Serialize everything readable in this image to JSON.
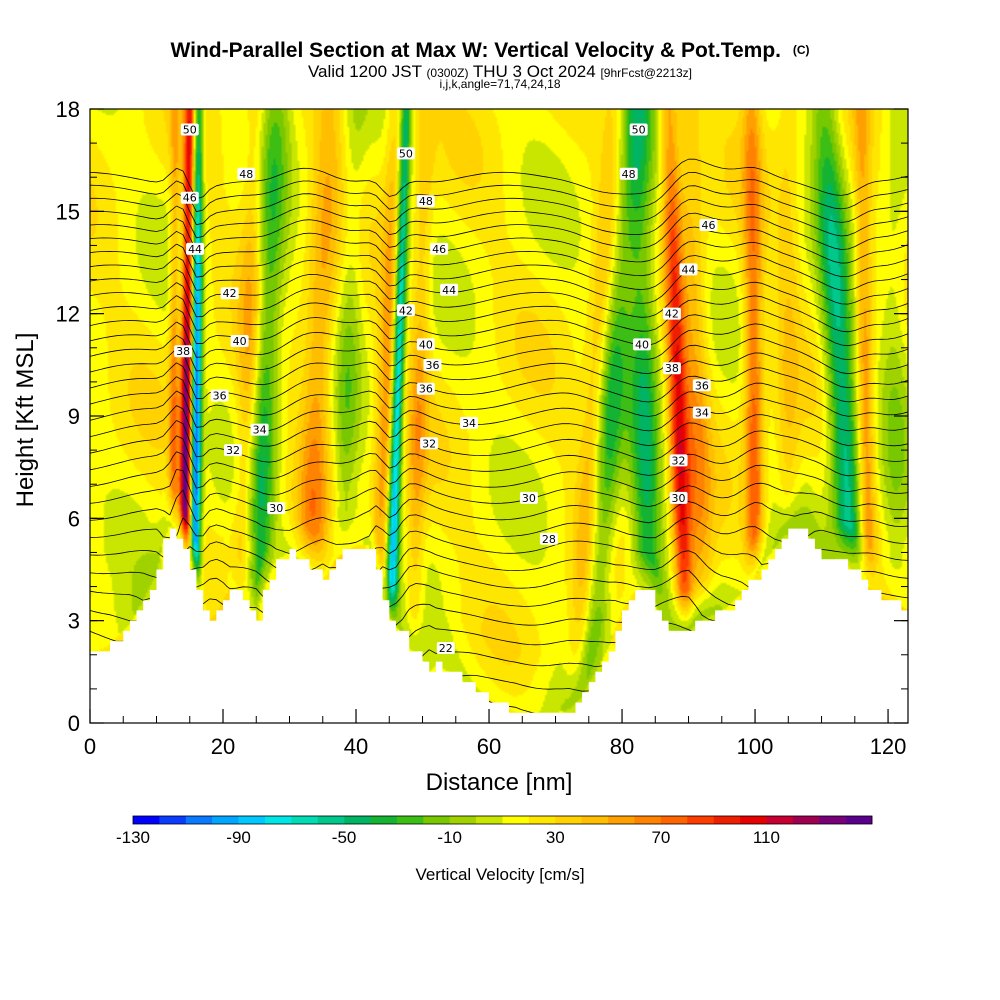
{
  "chart_data": {
    "type": "heatmap",
    "title": "Wind-Parallel Section at Max W: Vertical Velocity & Pot.Temp.",
    "title_mark": "(C)",
    "subtitle_valid": "Valid 1200 JST",
    "subtitle_utc": "(0300Z)",
    "subtitle_date": "THU 3 Oct 2024",
    "subtitle_fcst": "[9hrFcst@2213z]",
    "subtitle_indices": "i,j,k,angle=71,74,24,18",
    "xlabel": "Distance [nm]",
    "ylabel": "Height [Kft MSL]",
    "xlim": [
      0,
      123
    ],
    "ylim": [
      0,
      18
    ],
    "x_ticks": [
      0,
      20,
      40,
      60,
      80,
      100,
      120
    ],
    "y_ticks": [
      0,
      3,
      6,
      9,
      12,
      15,
      18
    ],
    "colorbar": {
      "label": "Vertical Velocity [cm/s]",
      "min": -130,
      "max": 150,
      "step": 10,
      "tick_values": [
        -130,
        -90,
        -50,
        -10,
        30,
        70,
        110
      ],
      "colors": [
        "#0000ff",
        "#0a3cff",
        "#0a78ff",
        "#00a5ff",
        "#00c8ff",
        "#00e6e6",
        "#00dcb4",
        "#00c88c",
        "#00b464",
        "#14b432",
        "#3cbe14",
        "#78c800",
        "#a0d200",
        "#c8e600",
        "#ffff00",
        "#ffe600",
        "#ffd200",
        "#ffbe00",
        "#ffa000",
        "#ff8200",
        "#ff6400",
        "#ff3c00",
        "#f01e00",
        "#e60000",
        "#c80032",
        "#a00050",
        "#780078",
        "#5a008c"
      ]
    },
    "terrain_profile": {
      "x": [
        0,
        3,
        6,
        8,
        10,
        11,
        12,
        13,
        15,
        16,
        17,
        18,
        19,
        20,
        21,
        22,
        24,
        25,
        26,
        28,
        30,
        33,
        35,
        37,
        39,
        40,
        42,
        43,
        44,
        45,
        46,
        47,
        48,
        50,
        51,
        52,
        54,
        56,
        58,
        60,
        62,
        64,
        66,
        68,
        70,
        72,
        74,
        76,
        78,
        79,
        80,
        82,
        84,
        85,
        86,
        87,
        88,
        90,
        92,
        94,
        96,
        98,
        100,
        102,
        104,
        106,
        108,
        110,
        112,
        114,
        116,
        118,
        120,
        123
      ],
      "height_kft": [
        2,
        2.3,
        2.9,
        3.6,
        4.4,
        5.3,
        5.8,
        5.5,
        4.6,
        4.0,
        3.4,
        3.0,
        3.2,
        3.6,
        4.0,
        3.8,
        3.2,
        3.0,
        3.8,
        4.8,
        5.0,
        4.5,
        4.2,
        4.8,
        5.1,
        5.2,
        5.2,
        4.4,
        3.6,
        3.1,
        2.8,
        2.6,
        2.2,
        1.8,
        1.5,
        1.7,
        1.5,
        1.2,
        0.9,
        0.7,
        0.5,
        0.3,
        0.3,
        0.3,
        0.3,
        0.4,
        0.8,
        1.5,
        2.2,
        2.8,
        3.3,
        3.9,
        3.8,
        3.4,
        2.9,
        2.7,
        2.7,
        2.7,
        3.0,
        3.2,
        3.4,
        3.8,
        4.3,
        4.9,
        5.4,
        5.7,
        5.5,
        4.7,
        4.7,
        4.6,
        4.2,
        3.8,
        3.6,
        3.3
      ]
    },
    "vertical_velocity_features": [
      {
        "x": 14.2,
        "x_top": 15.0,
        "sigma_nm": 0.6,
        "w_cm_s": 125
      },
      {
        "x": 15.8,
        "x_top": 16.3,
        "sigma_nm": 0.55,
        "w_cm_s": -128
      },
      {
        "x": 12.5,
        "x_top": 12.8,
        "sigma_nm": 0.5,
        "w_cm_s": 45
      },
      {
        "x": 25.0,
        "x_top": 28.0,
        "sigma_nm": 1.6,
        "w_cm_s": -55
      },
      {
        "x": 23.0,
        "x_top": 25.0,
        "sigma_nm": 1.2,
        "w_cm_s": 35
      },
      {
        "x": 33.0,
        "x_top": 36.0,
        "sigma_nm": 1.6,
        "w_cm_s": 40
      },
      {
        "x": 38.0,
        "x_top": 40.0,
        "sigma_nm": 1.3,
        "w_cm_s": -25
      },
      {
        "x": 45.2,
        "x_top": 47.5,
        "sigma_nm": 0.6,
        "w_cm_s": -110
      },
      {
        "x": 43.5,
        "x_top": 46.0,
        "sigma_nm": 1.0,
        "w_cm_s": 40
      },
      {
        "x": 48.5,
        "x_top": 50.5,
        "sigma_nm": 1.0,
        "w_cm_s": 30
      },
      {
        "x": 75.5,
        "x_top": 82.0,
        "sigma_nm": 1.7,
        "w_cm_s": -45
      },
      {
        "x": 73.0,
        "x_top": 79.0,
        "sigma_nm": 1.3,
        "w_cm_s": 30
      },
      {
        "x": 84.0,
        "x_top": 82.5,
        "sigma_nm": 1.6,
        "w_cm_s": -55
      },
      {
        "x": 89.5,
        "x_top": 87.0,
        "sigma_nm": 1.0,
        "w_cm_s": 80
      },
      {
        "x": 92.0,
        "x_top": 90.0,
        "sigma_nm": 1.4,
        "w_cm_s": 35
      },
      {
        "x": 100.0,
        "x_top": 99.5,
        "sigma_nm": 1.0,
        "w_cm_s": 60
      },
      {
        "x": 105.0,
        "x_top": 105.0,
        "sigma_nm": 1.2,
        "w_cm_s": 20
      },
      {
        "x": 114.5,
        "x_top": 110.5,
        "sigma_nm": 1.6,
        "w_cm_s": -75
      },
      {
        "x": 117.0,
        "x_top": 116.0,
        "sigma_nm": 0.9,
        "w_cm_s": 45
      },
      {
        "x": 121.0,
        "x_top": 121.0,
        "sigma_nm": 1.5,
        "w_cm_s": -20
      }
    ],
    "theta_contours_c": {
      "from": 16,
      "to": 55,
      "interval": 1
    },
    "theta_contour_labels": [
      {
        "text": "50",
        "x": 15.0,
        "y_kft": 17.4
      },
      {
        "text": "48",
        "x": 23.5,
        "y_kft": 16.1
      },
      {
        "text": "46",
        "x": 15.0,
        "y_kft": 15.4
      },
      {
        "text": "44",
        "x": 15.8,
        "y_kft": 13.9
      },
      {
        "text": "42",
        "x": 21.0,
        "y_kft": 12.6
      },
      {
        "text": "40",
        "x": 22.5,
        "y_kft": 11.2
      },
      {
        "text": "38",
        "x": 14.0,
        "y_kft": 10.9
      },
      {
        "text": "36",
        "x": 19.5,
        "y_kft": 9.6
      },
      {
        "text": "34",
        "x": 25.5,
        "y_kft": 8.6
      },
      {
        "text": "32",
        "x": 21.5,
        "y_kft": 8.0
      },
      {
        "text": "30",
        "x": 28.0,
        "y_kft": 6.3
      },
      {
        "text": "50",
        "x": 47.5,
        "y_kft": 16.7
      },
      {
        "text": "48",
        "x": 50.5,
        "y_kft": 15.3
      },
      {
        "text": "46",
        "x": 52.5,
        "y_kft": 13.9
      },
      {
        "text": "44",
        "x": 54.0,
        "y_kft": 12.7
      },
      {
        "text": "42",
        "x": 47.5,
        "y_kft": 12.1
      },
      {
        "text": "40",
        "x": 50.5,
        "y_kft": 11.1
      },
      {
        "text": "36",
        "x": 51.5,
        "y_kft": 10.5
      },
      {
        "text": "36",
        "x": 50.5,
        "y_kft": 9.8
      },
      {
        "text": "34",
        "x": 57.0,
        "y_kft": 8.8
      },
      {
        "text": "32",
        "x": 51.0,
        "y_kft": 8.2
      },
      {
        "text": "30",
        "x": 66.0,
        "y_kft": 6.6
      },
      {
        "text": "28",
        "x": 69.0,
        "y_kft": 5.4
      },
      {
        "text": "22",
        "x": 53.5,
        "y_kft": 2.2
      },
      {
        "text": "50",
        "x": 82.5,
        "y_kft": 17.4
      },
      {
        "text": "48",
        "x": 81.0,
        "y_kft": 16.1
      },
      {
        "text": "46",
        "x": 93.0,
        "y_kft": 14.6
      },
      {
        "text": "44",
        "x": 90.0,
        "y_kft": 13.3
      },
      {
        "text": "42",
        "x": 87.5,
        "y_kft": 12.0
      },
      {
        "text": "40",
        "x": 83.0,
        "y_kft": 11.1
      },
      {
        "text": "38",
        "x": 87.5,
        "y_kft": 10.4
      },
      {
        "text": "36",
        "x": 92.0,
        "y_kft": 9.9
      },
      {
        "text": "34",
        "x": 92.0,
        "y_kft": 9.1
      },
      {
        "text": "32",
        "x": 88.5,
        "y_kft": 7.7
      },
      {
        "text": "30",
        "x": 88.5,
        "y_kft": 6.6
      }
    ]
  }
}
